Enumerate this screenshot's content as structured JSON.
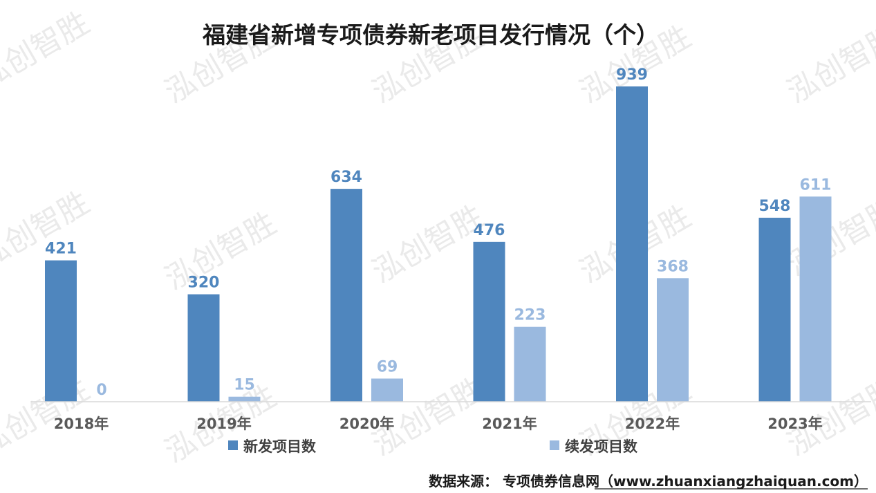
{
  "chart_data": {
    "type": "bar",
    "title": "福建省新增专项债券新老项目发行情况（个）",
    "categories": [
      "2018年",
      "2019年",
      "2020年",
      "2021年",
      "2022年",
      "2023年"
    ],
    "series": [
      {
        "name": "新发项目数",
        "values": [
          421,
          320,
          634,
          476,
          939,
          548
        ],
        "color": "#4f86be"
      },
      {
        "name": "续发项目数",
        "values": [
          0,
          15,
          69,
          223,
          368,
          611
        ],
        "color": "#9ab9df"
      }
    ],
    "ylim": [
      0,
      939
    ],
    "grid": false,
    "legend_position": "bottom"
  },
  "source": "数据来源： 专项债券信息网（www.zhuanxiangzhaiquan.com）",
  "watermark": "泓创智胜",
  "colors": {
    "axis": "#d9d9d9",
    "label": "#595959"
  }
}
